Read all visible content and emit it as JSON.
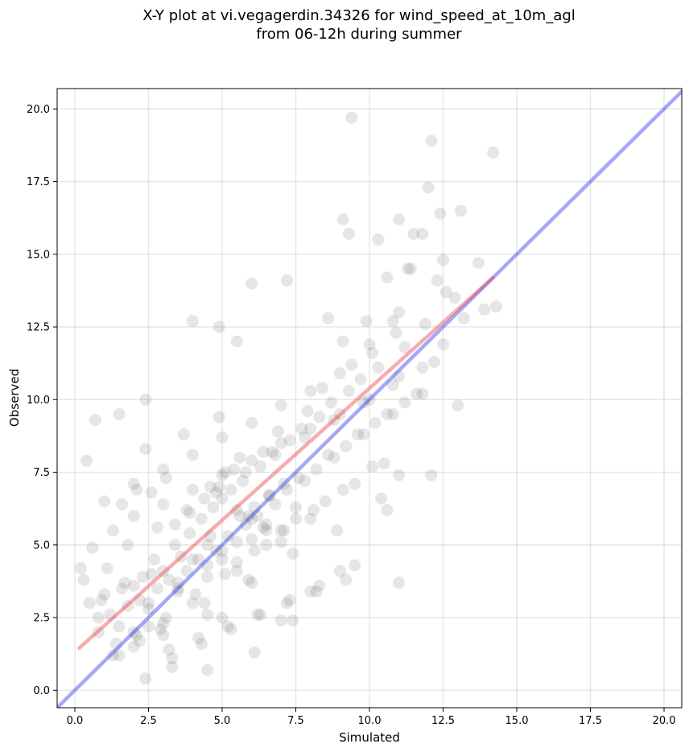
{
  "chart_data": {
    "type": "scatter",
    "title_lines": [
      "X-Y plot at vi.vegagerdin.34326 for wind_speed_at_10m_agl",
      "from 06-12h during summer"
    ],
    "xlabel": "Simulated",
    "ylabel": "Observed",
    "xlim": [
      -0.6,
      20.6
    ],
    "ylim": [
      -0.6,
      20.7
    ],
    "xticks": [
      0.0,
      2.5,
      5.0,
      7.5,
      10.0,
      12.5,
      15.0,
      17.5,
      20.0
    ],
    "xtick_labels": [
      "0.0",
      "2.5",
      "5.0",
      "7.5",
      "10.0",
      "12.5",
      "15.0",
      "17.5",
      "20.0"
    ],
    "yticks": [
      0.0,
      2.5,
      5.0,
      7.5,
      10.0,
      12.5,
      15.0,
      17.5,
      20.0
    ],
    "ytick_labels": [
      "0.0",
      "2.5",
      "5.0",
      "7.5",
      "10.0",
      "12.5",
      "15.0",
      "17.5",
      "20.0"
    ],
    "grid": true,
    "points": {
      "color": "#555555",
      "opacity": 0.15,
      "x": [
        9.4,
        12.1,
        14.2,
        12.0,
        13.1,
        9.1,
        12.4,
        11.0,
        11.5,
        9.3,
        11.8,
        10.3,
        13.7,
        12.5,
        11.3,
        6.0,
        7.2,
        12.3,
        13.9,
        14.3,
        11.0,
        10.8,
        8.6,
        9.9,
        4.0,
        4.9,
        5.5,
        9.1,
        10.0,
        12.5,
        0.4,
        0.7,
        1.5,
        2.4,
        13.0,
        12.1,
        10.6,
        11.0,
        9.5,
        0.2,
        0.3,
        0.5,
        0.8,
        1.3,
        2.4,
        3.3,
        4.5,
        6.1,
        2.0,
        3.0,
        5.0,
        7.0,
        9.0,
        11.0,
        1.0,
        2.0,
        3.0,
        4.0,
        5.0,
        6.0,
        7.0,
        8.0,
        2.5,
        3.5,
        4.5,
        5.5,
        6.5,
        7.5,
        8.5,
        9.5,
        10.5,
        1.5,
        2.5,
        3.5,
        4.5,
        5.5,
        6.5,
        7.5,
        1.2,
        1.8,
        2.2,
        2.8,
        3.2,
        3.8,
        4.2,
        4.8,
        5.2,
        5.8,
        6.2,
        6.8,
        7.2,
        7.8,
        8.2,
        8.8,
        9.2,
        9.8,
        10.2,
        10.8,
        11.2,
        11.8,
        0.9,
        1.6,
        2.6,
        3.6,
        4.6,
        5.6,
        6.6,
        7.6,
        8.6,
        9.6,
        10.6,
        11.6,
        2.1,
        3.1,
        4.1,
        5.1,
        6.1,
        7.1,
        8.1,
        9.1,
        10.1,
        1.4,
        2.9,
        4.4,
        5.9,
        7.4,
        8.9,
        10.4,
        0.6,
        1.1,
        1.7,
        2.3,
        2.7,
        3.4,
        3.9,
        4.3,
        4.7,
        5.3,
        5.7,
        6.3,
        6.7,
        7.3,
        7.7,
        8.3,
        8.7,
        9.3,
        9.7,
        10.3,
        2.0,
        3.0,
        4.0,
        5.0,
        6.0,
        7.0,
        8.0,
        9.0,
        10.0,
        11.0,
        1.0,
        2.0,
        3.0,
        4.0,
        5.0,
        6.0,
        7.0,
        8.0,
        9.0,
        3.3,
        4.3,
        5.3,
        6.3,
        7.3,
        8.3,
        2.2,
        3.2,
        4.2,
        5.2,
        6.2,
        7.2,
        8.2,
        9.2,
        1.8,
        2.8,
        3.8,
        4.8,
        5.8,
        6.8,
        7.8,
        8.8,
        9.8,
        10.8,
        11.8,
        0.8,
        1.3,
        2.4,
        3.7,
        4.9,
        5.4,
        6.4,
        6.9,
        7.9,
        8.4,
        9.4,
        4.6,
        5.1,
        5.6,
        6.1,
        6.6,
        7.1,
        3.4,
        3.9,
        4.4,
        4.9,
        2.6,
        3.1,
        1.6,
        2.1,
        5.9,
        6.4,
        5.0,
        5.5,
        6.0,
        6.5,
        7.0,
        4.5,
        5.0,
        5.5,
        6.0,
        3.5,
        4.0,
        4.5,
        2.5,
        3.0,
        2.0,
        1.5,
        12.9,
        12.6,
        11.4,
        10.6,
        13.2,
        12.2,
        8.0,
        7.4,
        10.9,
        10.1,
        11.2,
        11.9
      ],
      "y": [
        19.7,
        18.9,
        18.5,
        17.3,
        16.5,
        16.2,
        16.4,
        16.2,
        15.7,
        15.7,
        15.7,
        15.5,
        14.7,
        14.8,
        14.5,
        14.0,
        14.1,
        14.1,
        13.1,
        13.2,
        13.0,
        12.7,
        12.8,
        12.7,
        12.7,
        12.5,
        12.0,
        12.0,
        11.9,
        11.9,
        7.9,
        9.3,
        9.5,
        10.0,
        9.8,
        7.4,
        6.2,
        3.7,
        4.3,
        4.2,
        3.8,
        3.0,
        2.5,
        1.2,
        0.4,
        0.8,
        0.7,
        1.3,
        2.0,
        2.3,
        2.5,
        2.4,
        4.1,
        7.4,
        3.3,
        3.6,
        4.1,
        4.5,
        4.8,
        5.2,
        5.5,
        5.9,
        2.8,
        3.5,
        3.9,
        4.4,
        5.0,
        5.9,
        6.5,
        7.1,
        7.8,
        2.2,
        3.0,
        3.7,
        4.3,
        5.1,
        5.7,
        6.3,
        2.6,
        2.9,
        3.1,
        3.5,
        3.8,
        4.1,
        4.5,
        4.8,
        5.3,
        5.7,
        6.0,
        6.4,
        6.9,
        7.2,
        7.6,
        8.0,
        8.4,
        8.8,
        9.2,
        9.5,
        9.9,
        10.2,
        3.1,
        3.5,
        4.0,
        4.6,
        5.3,
        6.0,
        6.7,
        7.3,
        8.1,
        8.8,
        9.5,
        10.2,
        1.9,
        2.5,
        3.3,
        4.0,
        4.8,
        5.5,
        6.2,
        6.9,
        7.7,
        1.6,
        2.1,
        3.0,
        3.8,
        4.7,
        5.5,
        6.6,
        4.9,
        4.2,
        3.7,
        3.9,
        4.5,
        5.0,
        5.4,
        5.9,
        6.3,
        6.9,
        7.2,
        7.7,
        8.2,
        8.6,
        9.0,
        9.4,
        9.9,
        10.3,
        10.7,
        11.1,
        6.0,
        6.4,
        6.9,
        7.4,
        7.9,
        8.5,
        9.0,
        9.5,
        10.0,
        10.8,
        6.5,
        7.1,
        7.6,
        8.1,
        8.7,
        9.2,
        9.8,
        10.3,
        10.9,
        1.1,
        1.6,
        2.1,
        2.6,
        3.1,
        3.6,
        1.7,
        1.4,
        1.8,
        2.2,
        2.6,
        3.0,
        3.4,
        3.8,
        5.0,
        5.6,
        6.2,
        6.8,
        7.5,
        8.1,
        8.7,
        9.3,
        9.9,
        10.5,
        11.1,
        2.0,
        5.5,
        8.3,
        8.8,
        9.4,
        7.6,
        8.2,
        8.9,
        9.6,
        10.4,
        11.2,
        7.0,
        7.5,
        8.0,
        6.3,
        6.7,
        7.1,
        5.7,
        6.1,
        6.6,
        7.0,
        6.8,
        7.3,
        6.4,
        6.9,
        6.0,
        5.6,
        6.6,
        6.2,
        5.9,
        5.5,
        5.1,
        5.0,
        4.5,
        4.1,
        3.7,
        3.4,
        3.0,
        2.6,
        2.2,
        1.9,
        1.5,
        1.2,
        13.5,
        13.7,
        14.5,
        14.2,
        12.8,
        11.3,
        3.4,
        2.4,
        12.3,
        11.6,
        11.8,
        12.6
      ]
    },
    "regression_line": {
      "color": "#e8474b",
      "opacity": 0.45,
      "x": [
        0.15,
        14.2
      ],
      "y": [
        1.45,
        14.2
      ]
    },
    "identity_line": {
      "color": "#3c3cf0",
      "opacity": 0.45,
      "x": [
        -0.6,
        20.6
      ],
      "y": [
        -0.6,
        20.6
      ]
    }
  }
}
